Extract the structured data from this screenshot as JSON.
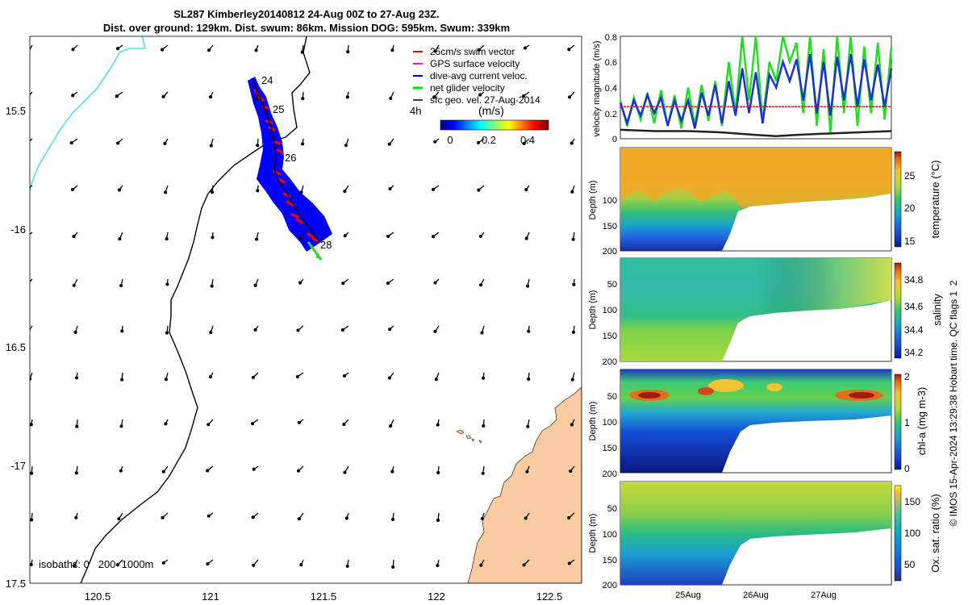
{
  "title": {
    "line1": "SL287 Kimberley20140812 24-Aug 00Z to 27-Aug 23Z.",
    "line2": "Dist. over ground: 129km. Dist. swum: 86km. Mission DOG: 595km. Swum: 339km"
  },
  "map": {
    "lon_ticks": [
      "120.5",
      "121",
      "121.5",
      "122",
      "122.5"
    ],
    "lat_ticks": [
      "15.5",
      "-16",
      "16.5",
      "-17",
      "17.5"
    ],
    "lon_range": [
      120.15,
      122.65
    ],
    "lat_range": [
      -17.52,
      -15.12
    ],
    "day_labels": [
      "24",
      "25",
      "26",
      "28"
    ],
    "isobaths_label": "isobaths: 0   200  1000m",
    "hour_label": "4h",
    "colors": {
      "land": "#f8cba0",
      "isobath_0": "#55dde6",
      "isobath_200": "#000000",
      "swath": "#0000ff",
      "glider": "#ff0000"
    }
  },
  "legend": {
    "items": [
      {
        "label": "25cm/s swim vector",
        "color": "#ff0000"
      },
      {
        "label": "GPS surface velocity",
        "color": "#ff00ff"
      },
      {
        "label": "dive-avg current veloc.",
        "color": "#0000ff"
      },
      {
        "label": "net glider velocity",
        "color": "#00dd00"
      },
      {
        "label": "sfc geo. vel. 27-Aug-2014",
        "color": "#000000"
      }
    ],
    "colorbar_title": "(m/s)",
    "colorbar_ticks": [
      "0",
      "0.2",
      "0.4"
    ]
  },
  "credit": "© IMOS 15-Apr-2024 13:29:38 Hobart time. QC flags 1  2",
  "chart_data": [
    {
      "type": "line",
      "ylabel": "velocity magnitude (m/s)",
      "ylim": [
        0,
        0.8
      ],
      "yticks": [
        "0",
        "0.2",
        "0.4",
        "0.6",
        "0.8"
      ],
      "xlim_days": [
        24.0,
        28.0
      ],
      "series": [
        {
          "name": "net glider velocity",
          "color": "#22dd22",
          "x": [
            24.0,
            24.1,
            24.2,
            24.3,
            24.4,
            24.5,
            24.6,
            24.7,
            24.8,
            24.9,
            25.0,
            25.1,
            25.2,
            25.3,
            25.4,
            25.5,
            25.6,
            25.7,
            25.8,
            25.9,
            26.0,
            26.1,
            26.2,
            26.3,
            26.4,
            26.5,
            26.6,
            26.7,
            26.8,
            26.9,
            27.0,
            27.1,
            27.2,
            27.3,
            27.4,
            27.5,
            27.6,
            27.7,
            27.8,
            27.9,
            28.0
          ],
          "values": [
            0.3,
            0.1,
            0.32,
            0.15,
            0.36,
            0.12,
            0.38,
            0.1,
            0.34,
            0.08,
            0.4,
            0.1,
            0.42,
            0.14,
            0.45,
            0.1,
            0.6,
            0.2,
            0.8,
            0.3,
            0.8,
            0.12,
            0.6,
            0.45,
            0.8,
            0.6,
            0.75,
            0.2,
            0.8,
            0.1,
            0.7,
            0.05,
            0.8,
            0.2,
            0.8,
            0.1,
            0.72,
            0.2,
            0.75,
            0.15,
            0.72
          ]
        },
        {
          "name": "dive-avg current veloc.",
          "color": "#1a33cc",
          "x": [
            24.0,
            24.1,
            24.2,
            24.3,
            24.4,
            24.5,
            24.6,
            24.7,
            24.8,
            24.9,
            25.0,
            25.1,
            25.2,
            25.3,
            25.4,
            25.5,
            25.6,
            25.7,
            25.8,
            25.9,
            26.0,
            26.1,
            26.2,
            26.3,
            26.4,
            26.5,
            26.6,
            26.7,
            26.8,
            26.9,
            27.0,
            27.1,
            27.2,
            27.3,
            27.4,
            27.5,
            27.6,
            27.7,
            27.8,
            27.9,
            28.0
          ],
          "values": [
            0.28,
            0.12,
            0.3,
            0.18,
            0.34,
            0.2,
            0.32,
            0.1,
            0.3,
            0.14,
            0.3,
            0.08,
            0.36,
            0.18,
            0.42,
            0.12,
            0.45,
            0.18,
            0.55,
            0.2,
            0.52,
            0.12,
            0.5,
            0.4,
            0.6,
            0.45,
            0.62,
            0.3,
            0.66,
            0.2,
            0.6,
            0.18,
            0.64,
            0.3,
            0.66,
            0.25,
            0.62,
            0.3,
            0.58,
            0.25,
            0.55
          ]
        },
        {
          "name": "25cm/s swim vector",
          "color": "#ff0000",
          "x": [
            24.0,
            28.0
          ],
          "values": [
            0.25,
            0.25
          ]
        },
        {
          "name": "sfc geo. vel.",
          "color": "#222222",
          "x": [
            24.0,
            24.5,
            25.0,
            25.5,
            26.0,
            26.3,
            26.6,
            27.0,
            27.5,
            28.0
          ],
          "values": [
            0.07,
            0.06,
            0.06,
            0.05,
            0.03,
            0.02,
            0.03,
            0.04,
            0.05,
            0.06
          ]
        }
      ]
    },
    {
      "type": "heatmap",
      "name": "temperature",
      "ylabel": "Depth (m)",
      "cbar_label": "temperature (°C)",
      "ylim": [
        200,
        0
      ],
      "yticks": [
        "100",
        "150",
        "200"
      ],
      "cbar_range": [
        14,
        29
      ],
      "cbar_ticks": [
        "25",
        "20",
        "15"
      ],
      "description_values": {
        "surface": 28,
        "mid": 22,
        "deep": 15
      }
    },
    {
      "type": "heatmap",
      "name": "salinity",
      "ylabel": "Depth (m)",
      "cbar_label": "salinity",
      "ylim": [
        200,
        0
      ],
      "yticks": [
        "50",
        "100",
        "150",
        "200"
      ],
      "cbar_range": [
        34.1,
        34.95
      ],
      "cbar_ticks": [
        "34.8",
        "34.6",
        "34.4",
        "34.2"
      ]
    },
    {
      "type": "heatmap",
      "name": "chl-a",
      "ylabel": "Depth (m)",
      "cbar_label": "chl-a (mg m-3)",
      "ylim": [
        200,
        0
      ],
      "yticks": [
        "50",
        "100",
        "150",
        "200"
      ],
      "cbar_range": [
        0,
        2
      ],
      "cbar_ticks": [
        "2",
        "1",
        "0"
      ]
    },
    {
      "type": "heatmap",
      "name": "oxygen",
      "ylabel": "Depth (m)",
      "cbar_label": "Ox. sat. ratio (%)",
      "ylim": [
        200,
        0
      ],
      "yticks": [
        "50",
        "100",
        "150",
        "200"
      ],
      "cbar_range": [
        20,
        175
      ],
      "cbar_ticks": [
        "150",
        "100",
        "50"
      ],
      "x_ticks": [
        "25Aug",
        "26Aug",
        "27Aug"
      ]
    }
  ]
}
